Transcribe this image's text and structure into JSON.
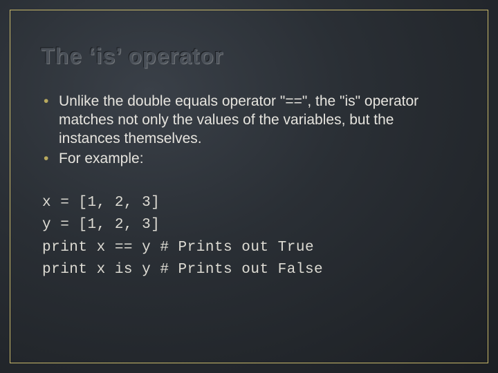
{
  "slide": {
    "title": "The ‘is’ operator",
    "bullets": [
      "Unlike the double equals operator \"==\", the \"is\" operator matches not only the values of the variables, but the instances themselves.",
      "For example:"
    ],
    "code_lines": [
      "x = [1, 2, 3]",
      "y = [1, 2, 3]",
      "print x == y # Prints out True",
      "print x is y # Prints out False"
    ]
  },
  "style": {
    "background_gradient_center": "#3a4048",
    "background_gradient_edge": "#1c1f23",
    "frame_border_color": "#c9b96a",
    "title_color": "#4a5058",
    "title_fontsize": 32,
    "bullet_color": "#b8a95e",
    "body_text_color": "#e6e4de",
    "body_fontsize": 21,
    "code_font": "Courier New",
    "code_fontsize": 21,
    "code_color": "#dedcd4",
    "slide_width": 720,
    "slide_height": 540
  }
}
